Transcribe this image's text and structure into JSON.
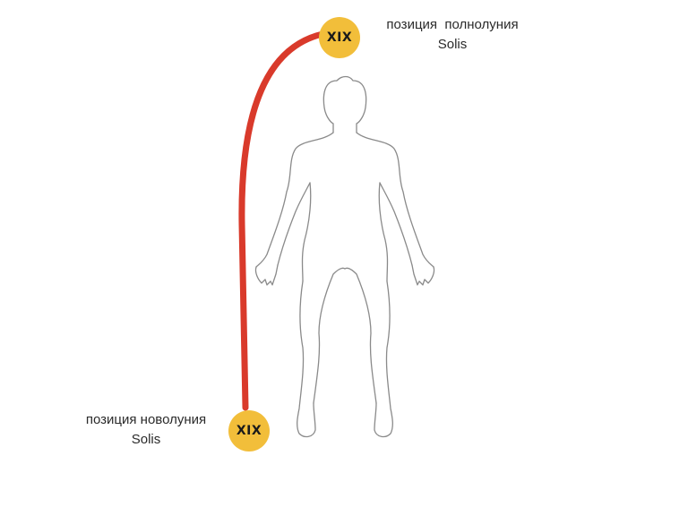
{
  "colors": {
    "badge_fill": "#f2be3a",
    "arc": "#d93a2b",
    "figure_stroke": "#8a8a8a"
  },
  "figure": {
    "icon": "human-body-outline-icon"
  },
  "full_moon": {
    "badge_text": "XIX",
    "label_line1": "позиция  полнолуния",
    "label_line2": "Solis"
  },
  "new_moon": {
    "badge_text": "XIX",
    "label_line1": "позиция новолуния",
    "label_line2": "Solis"
  }
}
